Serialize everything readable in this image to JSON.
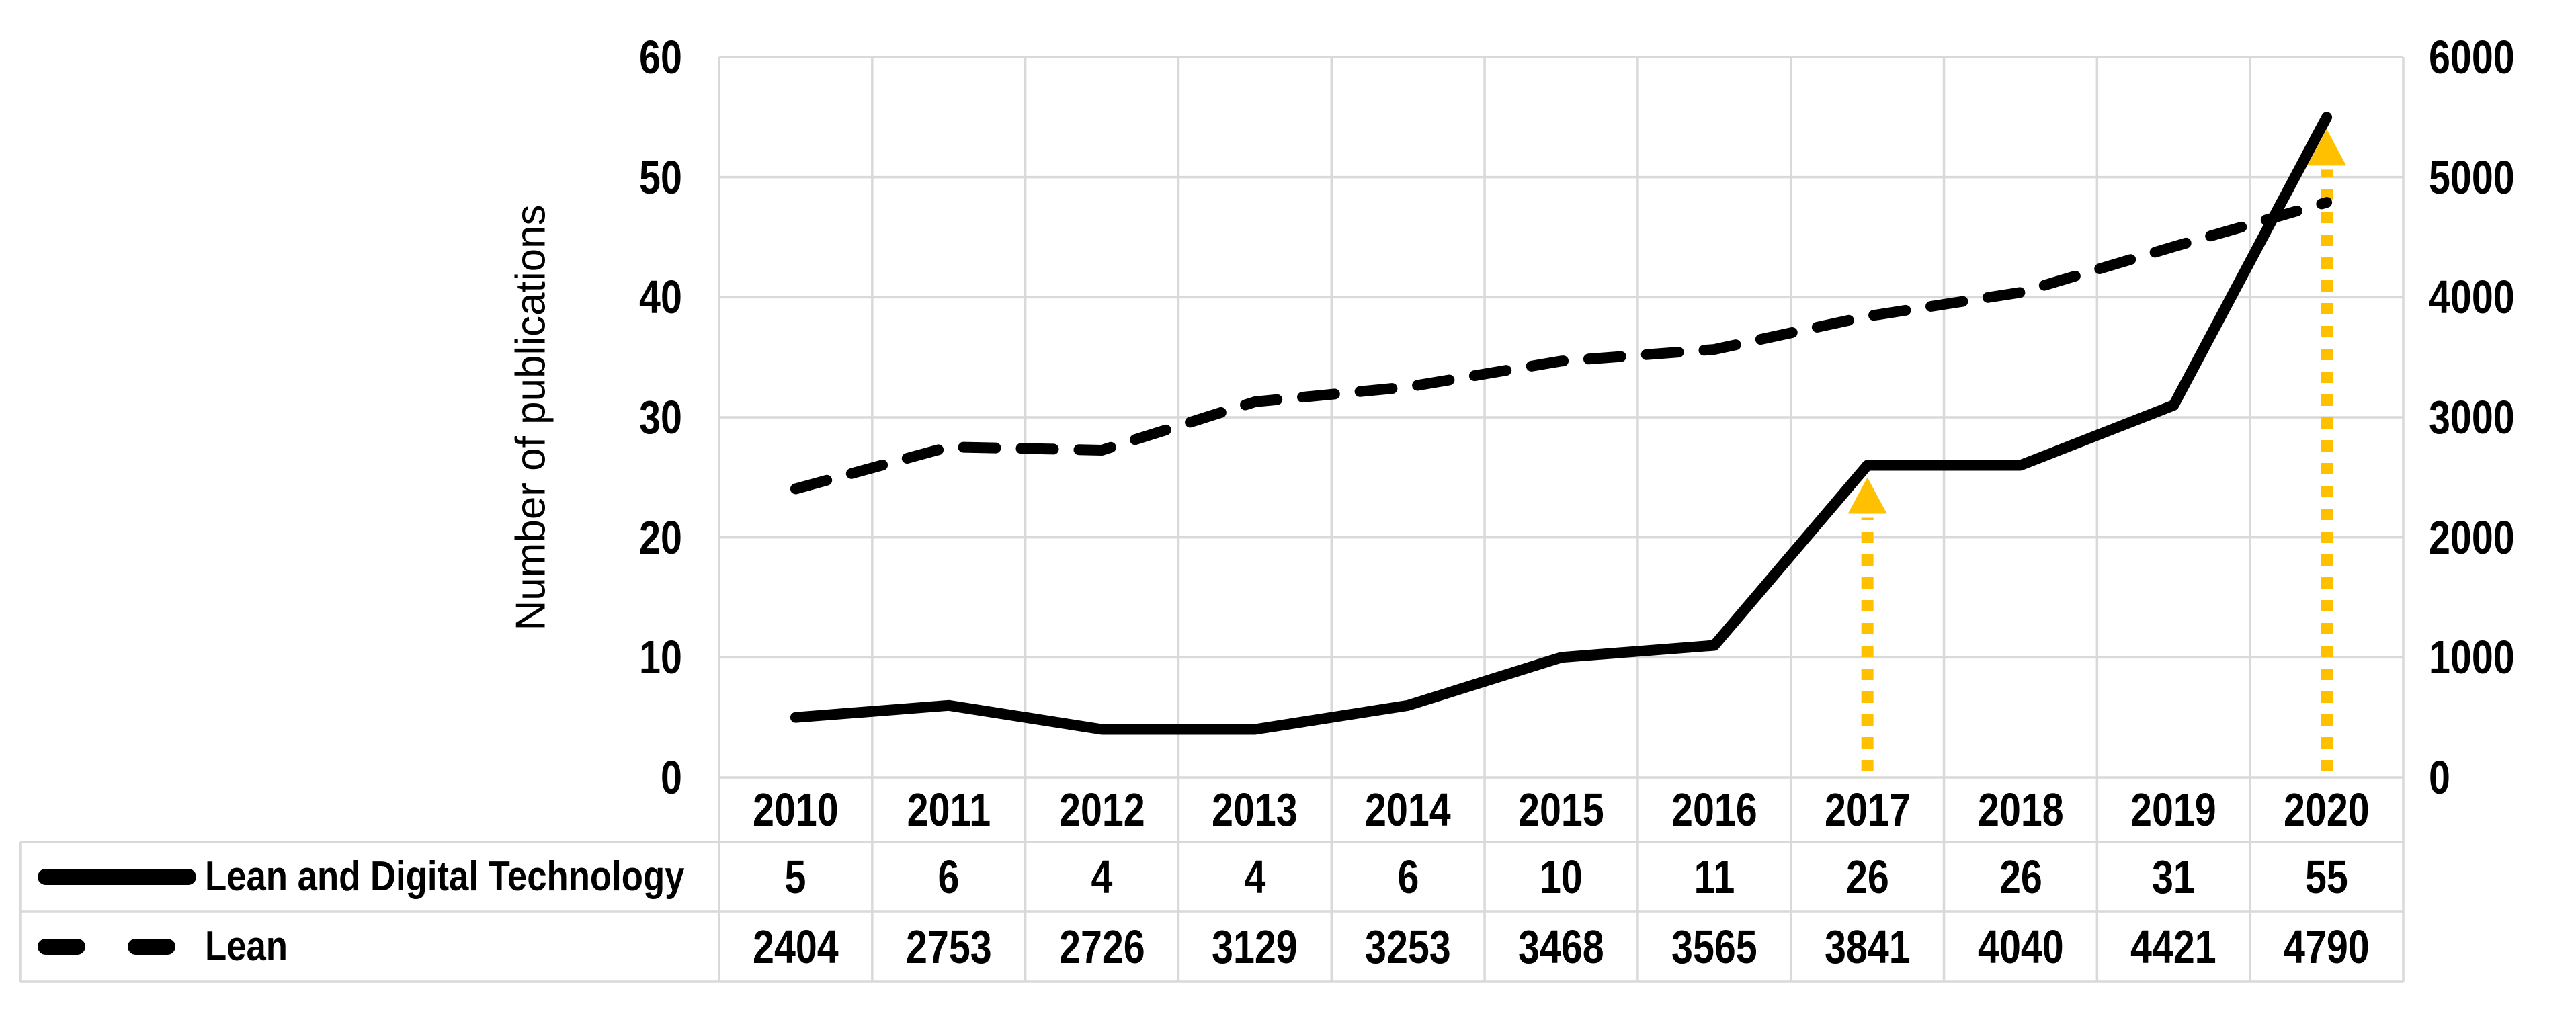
{
  "chart_data": {
    "type": "line",
    "title": "",
    "y_axis_title": "Number of publications",
    "categories": [
      "2010",
      "2011",
      "2012",
      "2013",
      "2014",
      "2015",
      "2016",
      "2017",
      "2018",
      "2019",
      "2020"
    ],
    "series": [
      {
        "name": "Lean and Digital Technology",
        "axis": "left",
        "line_style": "solid",
        "color": "#000000",
        "values": [
          5,
          6,
          4,
          4,
          6,
          10,
          11,
          26,
          26,
          31,
          55
        ]
      },
      {
        "name": "Lean",
        "axis": "right",
        "line_style": "dashed",
        "color": "#000000",
        "values": [
          2404,
          2753,
          2726,
          3129,
          3253,
          3468,
          3565,
          3841,
          4040,
          4421,
          4790
        ]
      }
    ],
    "left_axis": {
      "min": 0,
      "max": 60,
      "step": 10,
      "tick_labels_top_to_bottom": [
        "60",
        "50",
        "40",
        "30",
        "20",
        "10",
        "0"
      ]
    },
    "right_axis": {
      "min": 0,
      "max": 6000,
      "step": 1000,
      "tick_labels_top_to_bottom": [
        "6000",
        "5000",
        "4000",
        "3000",
        "2000",
        "1000",
        "0"
      ]
    },
    "annotations": [
      {
        "type": "up-arrow",
        "year": "2017",
        "points_to_series": "Lean and Digital Technology",
        "style": "dotted",
        "color": "#FFC000"
      },
      {
        "type": "up-arrow",
        "year": "2020",
        "points_to_series": "Lean and Digital Technology",
        "style": "dotted",
        "color": "#FFC000"
      }
    ],
    "grid": true,
    "data_table": true,
    "legend_position": "table-left",
    "colors": {
      "series_line": "#000000",
      "gridline": "#D9D9D9",
      "arrow": "#FFC000",
      "text": "#000000",
      "background": "#FFFFFF"
    }
  }
}
